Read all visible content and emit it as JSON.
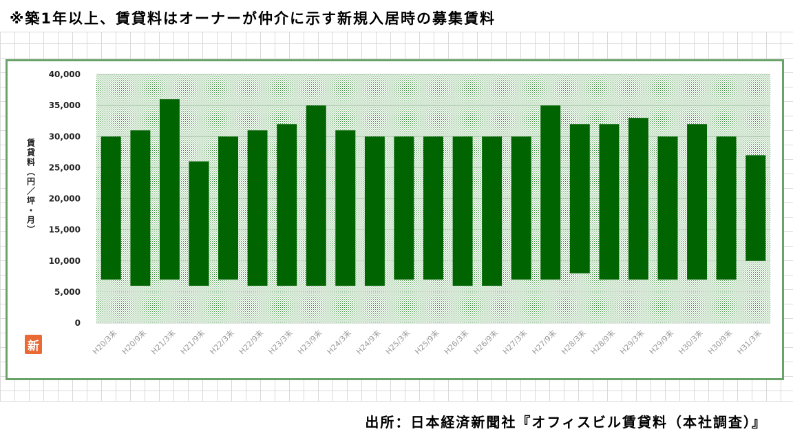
{
  "note": "※築1年以上、賃貸料はオーナーが仲介に示す新規入居時の募集賃料",
  "source": "出所：日本経済新聞社『オフィスビル賃貸料（本社調査）』",
  "logo_text": "新",
  "colors": {
    "bar": "#006400",
    "plot_dots": "#2e8b2e",
    "frame_border": "#6aa36a",
    "logo": "#ea6a36"
  },
  "chart_data": {
    "type": "bar",
    "subtype": "floating-range",
    "title": "",
    "xlabel": "",
    "ylabel": "賃貸料（円／坪・月）",
    "ylim": [
      0,
      40000
    ],
    "yticks": [
      0,
      5000,
      10000,
      15000,
      20000,
      25000,
      30000,
      35000,
      40000
    ],
    "ytick_labels": [
      "0",
      "5,000",
      "10,000",
      "15,000",
      "20,000",
      "25,000",
      "30,000",
      "35,000",
      "40,000"
    ],
    "grid": true,
    "legend": "none",
    "categories": [
      "H20/3末",
      "H20/9末",
      "H21/3末",
      "H21/9末",
      "H22/3末",
      "H22/9末",
      "H23/3末",
      "H23/9末",
      "H24/3末",
      "H24/9末",
      "H25/3末",
      "H25/9末",
      "H26/3末",
      "H26/9末",
      "H27/3末",
      "H27/9末",
      "H28/3末",
      "H28/9末",
      "H29/3末",
      "H29/9末",
      "H30/3末",
      "H30/9末",
      "H31/3末"
    ],
    "series": [
      {
        "low": [
          7000,
          6000,
          7000,
          6000,
          7000,
          6000,
          6000,
          6000,
          6000,
          6000,
          7000,
          7000,
          6000,
          6000,
          7000,
          7000,
          8000,
          7000,
          7000,
          7000,
          7000,
          7000,
          10000
        ],
        "high": [
          30000,
          31000,
          36000,
          26000,
          30000,
          31000,
          32000,
          35000,
          31000,
          30000,
          30000,
          30000,
          30000,
          30000,
          30000,
          35000,
          32000,
          32000,
          33000,
          30000,
          32000,
          30000,
          27000
        ]
      }
    ]
  }
}
